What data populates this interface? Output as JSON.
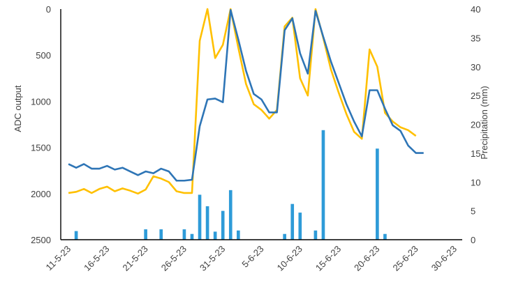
{
  "chart_data": {
    "type": "bar+line",
    "x_ticks": [
      "11-5-23",
      "16-5-23",
      "21-5-23",
      "26-5-23",
      "31-5-23",
      "5-6-23",
      "10-6-23",
      "15-6-23",
      "20-6-23",
      "25-6-23",
      "30-6-23"
    ],
    "xlim": [
      "2023-05-10",
      "2023-07-01"
    ],
    "y_left": {
      "label": "ADC output",
      "inverted": true,
      "lim": [
        0,
        2500
      ],
      "ticks": [
        "0",
        "500",
        "1000",
        "1500",
        "2000",
        "2500"
      ]
    },
    "y_right": {
      "label": "Precipitation (mm)",
      "lim": [
        0,
        40
      ],
      "ticks": [
        "0",
        "5",
        "10",
        "15",
        "20",
        "25",
        "30",
        "35",
        "40"
      ]
    },
    "grid": false,
    "colors": {
      "adc_line": "#2e75b6",
      "precip_line": "#ffc000",
      "precip_bars": "#2e9bd8"
    },
    "series": [
      {
        "type": "line",
        "axis": "left",
        "color": "#2e75b6",
        "x": [
          "2023-05-11",
          "2023-05-12",
          "2023-05-13",
          "2023-05-14",
          "2023-05-15",
          "2023-05-16",
          "2023-05-17",
          "2023-05-18",
          "2023-05-19",
          "2023-05-20",
          "2023-05-21",
          "2023-05-22",
          "2023-05-23",
          "2023-05-24",
          "2023-05-25",
          "2023-05-26",
          "2023-05-27",
          "2023-05-28",
          "2023-05-29",
          "2023-05-30",
          "2023-05-31",
          "2023-06-01",
          "2023-06-02",
          "2023-06-03",
          "2023-06-04",
          "2023-06-05",
          "2023-06-06",
          "2023-06-07",
          "2023-06-08",
          "2023-06-09",
          "2023-06-10",
          "2023-06-11",
          "2023-06-12",
          "2023-06-13",
          "2023-06-14",
          "2023-06-15",
          "2023-06-16",
          "2023-06-17",
          "2023-06-18",
          "2023-06-19",
          "2023-06-20",
          "2023-06-21",
          "2023-06-22",
          "2023-06-23",
          "2023-06-24",
          "2023-06-25",
          "2023-06-26"
        ],
        "values": [
          1680,
          1720,
          1680,
          1730,
          1730,
          1700,
          1740,
          1720,
          1760,
          1800,
          1760,
          1780,
          1730,
          1760,
          1860,
          1860,
          1850,
          1270,
          980,
          970,
          1010,
          10,
          330,
          670,
          920,
          980,
          1120,
          1120,
          230,
          100,
          480,
          700,
          20,
          300,
          570,
          800,
          1030,
          1220,
          1380,
          880,
          880,
          1080,
          1260,
          1320,
          1480,
          1560,
          1560
        ]
      },
      {
        "type": "line",
        "axis": "right",
        "color": "#ffc000",
        "x": [
          "2023-05-11",
          "2023-05-12",
          "2023-05-13",
          "2023-05-14",
          "2023-05-15",
          "2023-05-16",
          "2023-05-17",
          "2023-05-18",
          "2023-05-19",
          "2023-05-20",
          "2023-05-21",
          "2023-05-22",
          "2023-05-23",
          "2023-05-24",
          "2023-05-25",
          "2023-05-26",
          "2023-05-27",
          "2023-05-28",
          "2023-05-29",
          "2023-05-30",
          "2023-05-31",
          "2023-06-01",
          "2023-06-02",
          "2023-06-03",
          "2023-06-04",
          "2023-06-05",
          "2023-06-06",
          "2023-06-07",
          "2023-06-08",
          "2023-06-09",
          "2023-06-10",
          "2023-06-11",
          "2023-06-12",
          "2023-06-13",
          "2023-06-14",
          "2023-06-15",
          "2023-06-16",
          "2023-06-17",
          "2023-06-18",
          "2023-06-19",
          "2023-06-20",
          "2023-06-21",
          "2023-06-22",
          "2023-06-23",
          "2023-06-24",
          "2023-06-25"
        ],
        "values": [
          8.1,
          8.3,
          8.8,
          8.1,
          8.8,
          9.2,
          8.4,
          8.9,
          8.5,
          8.0,
          8.7,
          11.0,
          10.6,
          10.0,
          8.4,
          8.1,
          8.1,
          34.5,
          40.0,
          31.5,
          33.8,
          40.0,
          33.3,
          27.0,
          23.5,
          22.5,
          21.0,
          22.5,
          37.0,
          38.5,
          28.0,
          25.0,
          40.0,
          35.0,
          29.5,
          25.5,
          21.8,
          18.7,
          17.5,
          33.0,
          30.0,
          22.0,
          20.5,
          19.5,
          19.0,
          18.0
        ]
      },
      {
        "type": "bar",
        "axis": "right",
        "color": "#2e9bd8",
        "x": [
          "2023-05-12",
          "2023-05-21",
          "2023-05-23",
          "2023-05-26",
          "2023-05-27",
          "2023-05-28",
          "2023-05-29",
          "2023-05-30",
          "2023-05-31",
          "2023-06-01",
          "2023-06-02",
          "2023-06-08",
          "2023-06-09",
          "2023-06-10",
          "2023-06-12",
          "2023-06-13",
          "2023-06-20",
          "2023-06-21"
        ],
        "values": [
          1.5,
          1.8,
          1.8,
          1.8,
          1.0,
          7.8,
          5.8,
          1.4,
          5.0,
          8.6,
          1.6,
          1.0,
          6.2,
          4.7,
          1.6,
          19.0,
          15.8,
          1.0
        ]
      }
    ]
  }
}
